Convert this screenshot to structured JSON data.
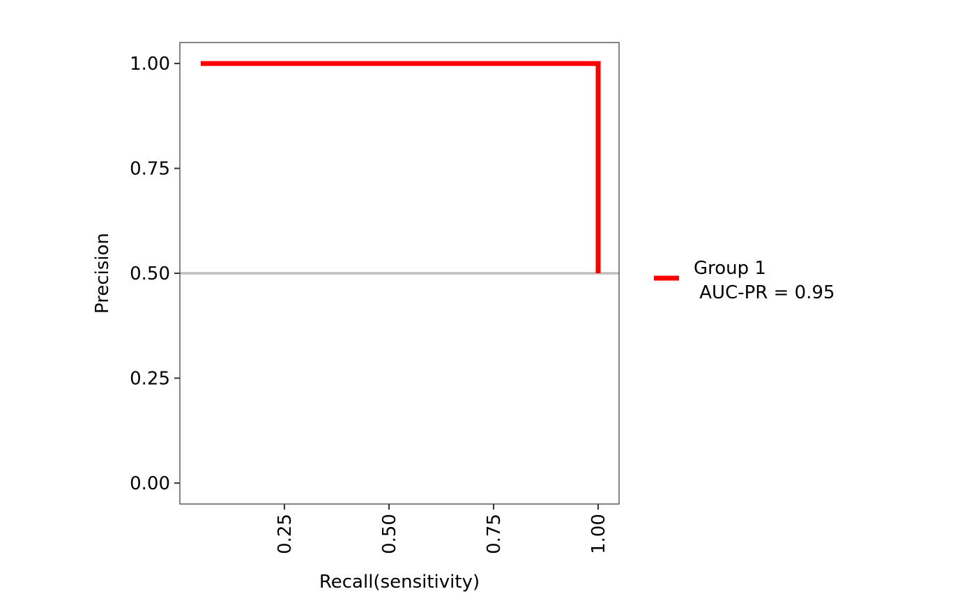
{
  "chart_data": {
    "type": "line",
    "title": "",
    "xlabel": "Recall(sensitivity)",
    "ylabel": "Precision",
    "xlim": [
      0.0,
      1.05
    ],
    "ylim": [
      -0.05,
      1.05
    ],
    "x_ticks": [
      0.25,
      0.5,
      0.75,
      1.0
    ],
    "x_tick_labels": [
      "0.25",
      "0.50",
      "0.75",
      "1.00"
    ],
    "y_ticks": [
      0.0,
      0.25,
      0.5,
      0.75,
      1.0
    ],
    "y_tick_labels": [
      "0.00",
      "0.25",
      "0.50",
      "0.75",
      "1.00"
    ],
    "grid": false,
    "legend_position": "right",
    "series": [
      {
        "name": "Group 1\n AUC-PR = 0.95",
        "color": "#ff0000",
        "x": [
          0.05,
          1.0,
          1.0
        ],
        "y": [
          1.0,
          1.0,
          0.5
        ]
      }
    ],
    "reference_line": {
      "type": "horizontal",
      "y": 0.5,
      "color": "#bebebe"
    },
    "legend": {
      "line1": "Group 1",
      "line2": " AUC-PR = 0.95"
    }
  }
}
